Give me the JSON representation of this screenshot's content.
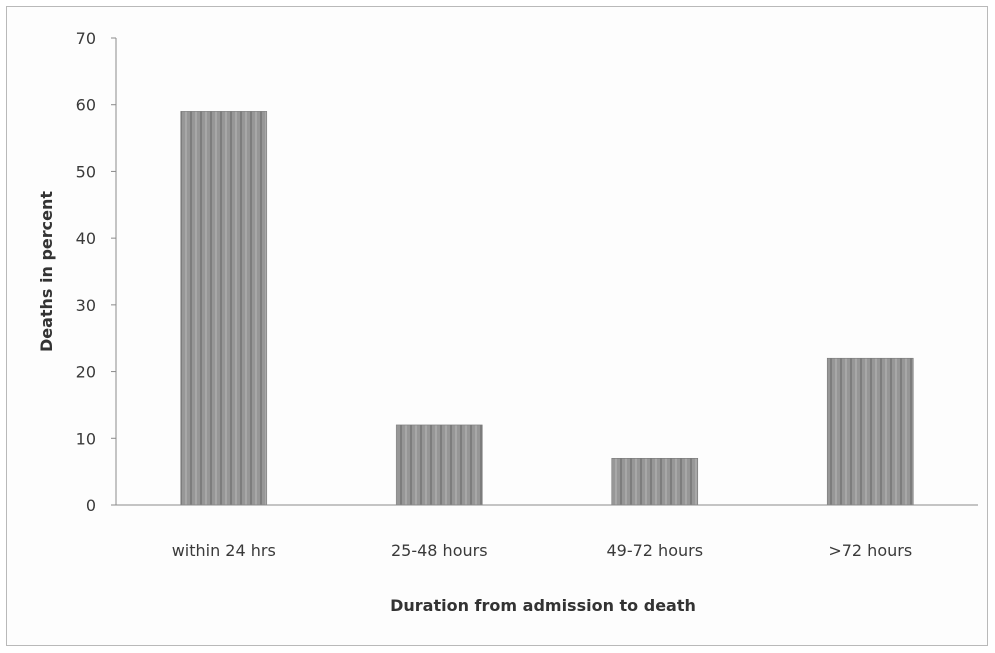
{
  "chart_data": {
    "type": "bar",
    "title": "",
    "xlabel": "Duration from admission to death",
    "ylabel": "Deaths in percent",
    "categories": [
      "within 24 hrs",
      "25-48 hours",
      "49-72 hours",
      ">72 hours"
    ],
    "values": [
      59,
      12,
      7,
      22
    ],
    "ylim": [
      0,
      70
    ],
    "yticks": [
      0,
      10,
      20,
      30,
      40,
      50,
      60,
      70
    ],
    "grid": false,
    "legend": "none",
    "bar_color": "#8f8f8f"
  }
}
